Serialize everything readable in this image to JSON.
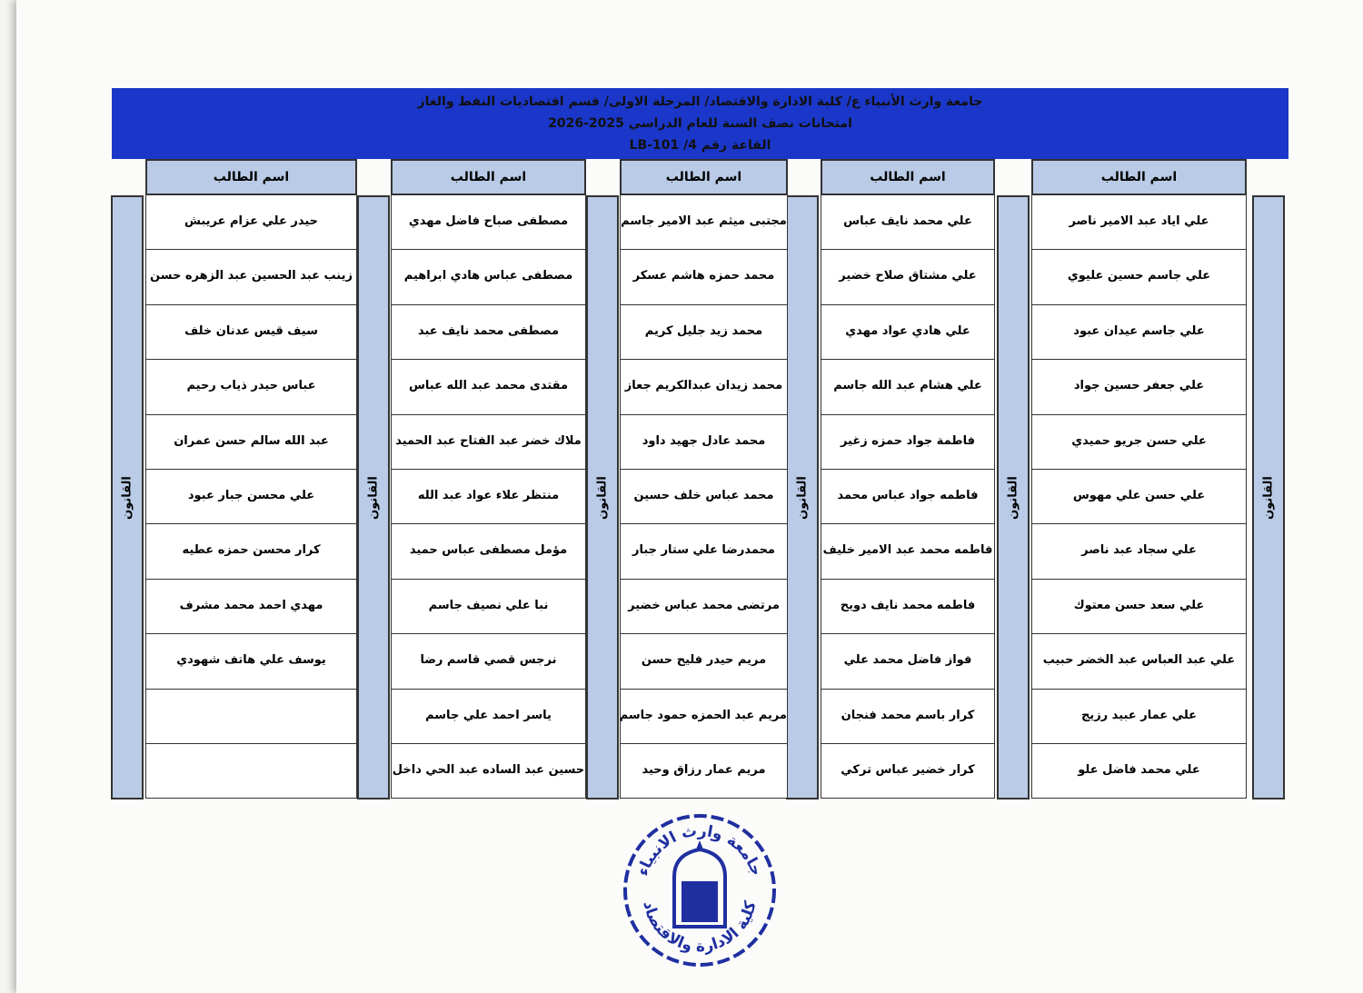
{
  "header": {
    "line1": "جامعة وارث الأنبياء ع/ كلية الادارة والاقتصاد/ المرحلة الاولى/ قسم اقتصاديات النفط والغاز",
    "line2": "امتحانات نصف السنة للعام الدراسي 2025-2026",
    "line3": "القاعة رقم 4/ LB-101"
  },
  "column_header": "اسم الطالب",
  "subject": "القانون",
  "groups": [
    {
      "names": [
        "علي اياد عبد الامير ناصر",
        "علي جاسم حسين عليوي",
        "علي جاسم عيدان عبود",
        "علي جعفر حسين جواد",
        "علي حسن جريو حميدي",
        "علي حسن علي مهوس",
        "علي سجاد عبد ناصر",
        "علي سعد حسن معتوك",
        "علي عبد العباس عبد الخضر حبيب",
        "علي عمار عبيد رزيج",
        "علي محمد فاضل علو"
      ]
    },
    {
      "names": [
        "علي محمد نايف عباس",
        "علي مشتاق صلاح خضير",
        "علي هادي عواد مهدي",
        "علي هشام عبد الله جاسم",
        "فاطمة جواد حمزه زغير",
        "فاطمه جواد عباس محمد",
        "فاطمه محمد عبد الامير خليف",
        "فاطمه محمد نايف دويح",
        "فواز فاضل محمد علي",
        "كرار باسم محمد فنجان",
        "كرار خضير عباس تركي"
      ]
    },
    {
      "names": [
        "مجتبى ميثم عبد الامير جاسم",
        "محمد حمزه هاشم عسكر",
        "محمد زيد جليل كريم",
        "محمد زيدان عبدالكريم جعاز",
        "محمد عادل جهيد داود",
        "محمد عباس خلف حسين",
        "محمدرضا علي ستار جبار",
        "مرتضى محمد عباس خضير",
        "مريم حيدر فليح حسن",
        "مريم عبد الحمزه حمود جاسم",
        "مريم عمار رزاق وحيد"
      ]
    },
    {
      "names": [
        "مصطفى صباح فاضل مهدي",
        "مصطفى عباس هادي ابراهيم",
        "مصطفى محمد نايف عبد",
        "مقتدى محمد عبد الله عباس",
        "ملاك خضر عبد الفتاح عبد الحميد",
        "منتظر علاء عواد عبد الله",
        "مؤمل مصطفى عباس حميد",
        "نبا علي نصيف جاسم",
        "نرجس قصي قاسم رضا",
        "ياسر احمد علي جاسم",
        "حسين عبد الساده عبد الحي داخل"
      ]
    },
    {
      "names": [
        "حيدر علي عزام عريبش",
        "زينب عبد الحسين عبد الزهره حسن",
        "سيف قيس عدنان خلف",
        "عباس حيدر ذياب رحيم",
        "عبد الله سالم حسن عمران",
        "علي محسن جبار عبود",
        "كرار محسن حمزه عطيه",
        "مهدي احمد محمد مشرف",
        "يوسف علي هاتف شهودي",
        "",
        ""
      ]
    }
  ],
  "seal": {
    "top_text": "جامعة وارث الانبياء",
    "bottom_text": "كلية الادارة والاقتصاد"
  },
  "colors": {
    "header_band": "#1b37c9",
    "cell_shade": "#b9cbe6",
    "seal": "#1f2fa0"
  }
}
